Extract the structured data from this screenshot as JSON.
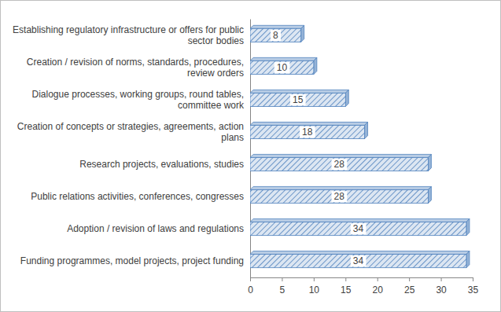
{
  "chart_data": {
    "type": "bar",
    "orientation": "horizontal",
    "categories": [
      "Establishing regulatory infrastructure or offers for public sector bodies",
      "Creation / revision of norms, standards, procedures, review orders",
      "Dialogue processes, working groups, round tables, committee work",
      "Creation of concepts or strategies, agreements, action plans",
      "Research projects, evaluations, studies",
      "Public relations activities, conferences, congresses",
      "Adoption / revision of laws and regulations",
      "Funding programmes, model projects, project funding"
    ],
    "values": [
      8,
      10,
      15,
      18,
      28,
      28,
      34,
      34
    ],
    "color": "#4f81bd",
    "xlim": [
      0,
      35
    ],
    "xticks": [
      0,
      5,
      10,
      15,
      20,
      25,
      30,
      35
    ],
    "data_labels": true,
    "grid": false
  }
}
